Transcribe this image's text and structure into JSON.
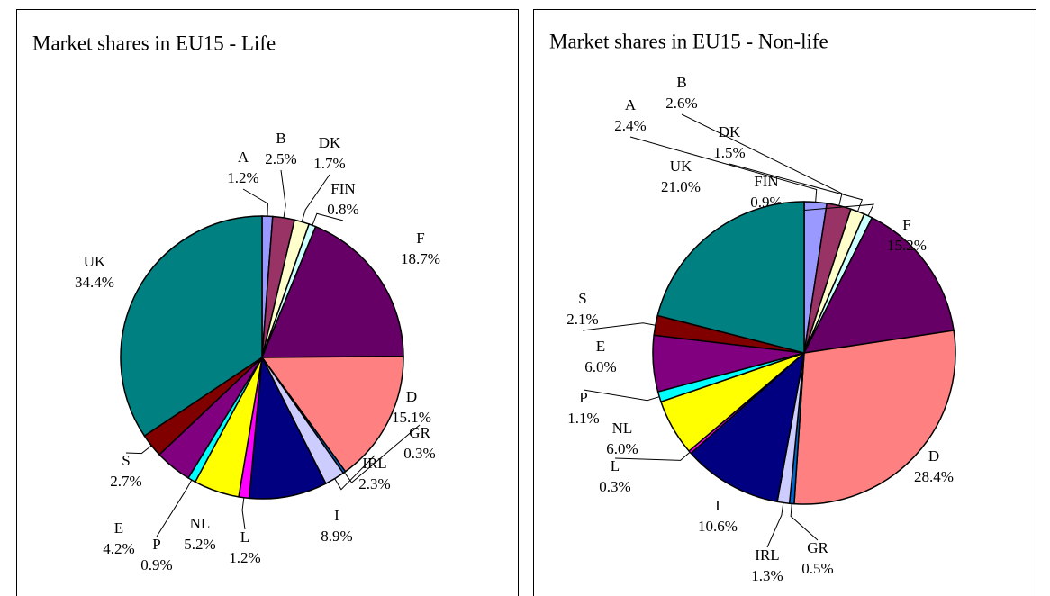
{
  "chart_data": [
    {
      "type": "pie",
      "title": "Market shares in EU15 - Life",
      "categories": [
        "A",
        "B",
        "DK",
        "FIN",
        "F",
        "D",
        "GR",
        "IRL",
        "I",
        "L",
        "NL",
        "P",
        "E",
        "S",
        "UK"
      ],
      "values": [
        1.2,
        2.5,
        1.7,
        0.8,
        18.7,
        15.1,
        0.3,
        2.3,
        8.9,
        1.2,
        5.2,
        0.9,
        4.2,
        2.7,
        34.4
      ],
      "value_labels": [
        "1.2%",
        "2.5%",
        "1.7%",
        "0.8%",
        "18.7%",
        "15.1%",
        "0.3%",
        "2.3%",
        "8.9%",
        "1.2%",
        "5.2%",
        "0.9%",
        "4.2%",
        "2.7%",
        "34.4%"
      ],
      "colors": [
        "#9999ff",
        "#993366",
        "#ffffcc",
        "#ccffff",
        "#660066",
        "#ff8080",
        "#0066cc",
        "#ccccff",
        "#000080",
        "#ff00ff",
        "#ffff00",
        "#00ffff",
        "#800080",
        "#800000",
        "#008080"
      ]
    },
    {
      "type": "pie",
      "title": "Market shares in EU15 - Non-life",
      "categories": [
        "A",
        "B",
        "DK",
        "FIN",
        "F",
        "D",
        "GR",
        "IRL",
        "I",
        "L",
        "NL",
        "P",
        "E",
        "S",
        "UK"
      ],
      "values": [
        2.4,
        2.6,
        1.5,
        0.9,
        15.2,
        28.4,
        0.5,
        1.3,
        10.6,
        0.3,
        6.0,
        1.1,
        6.0,
        2.1,
        21.0
      ],
      "value_labels": [
        "2.4%",
        "2.6%",
        "1.5%",
        "0.9%",
        "15.2%",
        "28.4%",
        "0.5%",
        "1.3%",
        "10.6%",
        "0.3%",
        "6.0%",
        "1.1%",
        "6.0%",
        "2.1%",
        "21.0%"
      ],
      "colors": [
        "#9999ff",
        "#993366",
        "#ffffcc",
        "#ccffff",
        "#660066",
        "#ff8080",
        "#0066cc",
        "#ccccff",
        "#000080",
        "#ff00ff",
        "#ffff00",
        "#00ffff",
        "#800080",
        "#800000",
        "#008080"
      ]
    }
  ]
}
